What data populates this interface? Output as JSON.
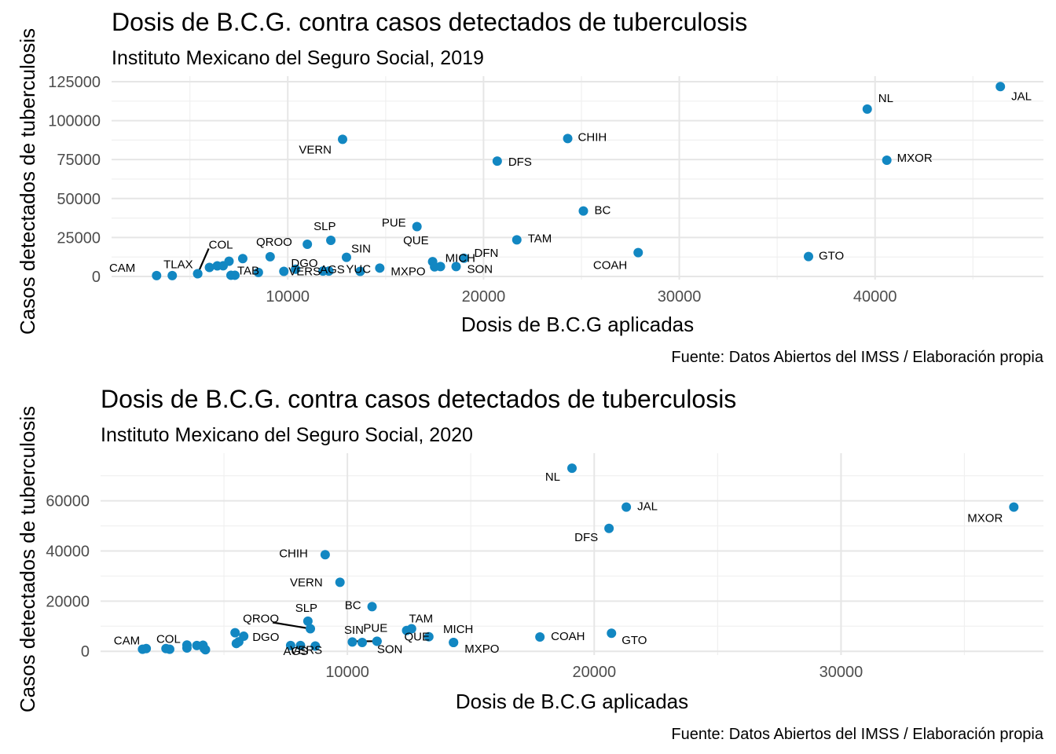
{
  "chart_data": [
    {
      "type": "scatter",
      "title": "Dosis de B.C.G. contra casos detectados de tuberculosis",
      "subtitle": "Instituto Mexicano del Seguro Social, 2019",
      "xlabel": "Dosis de B.C.G aplicadas",
      "ylabel": "Casos detectados de tuberculosis",
      "caption": "Fuente: Datos Abiertos del IMSS / Elaboración propia",
      "xlim": [
        1000,
        48600
      ],
      "ylim": [
        -2000,
        128500
      ],
      "x_ticks": [
        10000,
        20000,
        30000,
        40000
      ],
      "x_tick_labels": [
        "10000",
        "20000",
        "30000",
        "40000"
      ],
      "y_ticks": [
        0,
        25000,
        50000,
        75000,
        100000,
        125000
      ],
      "y_tick_labels": [
        "0",
        "25000",
        "50000",
        "75000",
        "100000",
        "125000"
      ],
      "grid": true,
      "color": "#1287c2",
      "points": [
        {
          "label": "CAM",
          "x": 3300,
          "y": 600
        },
        {
          "label": "",
          "x": 4100,
          "y": 600
        },
        {
          "label": "TLAX",
          "x": 5400,
          "y": 1800
        },
        {
          "label": "",
          "x": 6000,
          "y": 5800
        },
        {
          "label": "",
          "x": 6400,
          "y": 6800
        },
        {
          "label": "",
          "x": 6700,
          "y": 6900
        },
        {
          "label": "",
          "x": 7000,
          "y": 9800
        },
        {
          "label": "",
          "x": 7100,
          "y": 800
        },
        {
          "label": "TAB",
          "x": 7300,
          "y": 800
        },
        {
          "label": "",
          "x": 7700,
          "y": 11500
        },
        {
          "label": "",
          "x": 8500,
          "y": 2600
        },
        {
          "label": "QROO",
          "x": 9100,
          "y": 12700
        },
        {
          "label": "VERS",
          "x": 9800,
          "y": 3300
        },
        {
          "label": "",
          "x": 10400,
          "y": 4700
        },
        {
          "label": "SLP",
          "x": 11000,
          "y": 20700
        },
        {
          "label": "AGS",
          "x": 11800,
          "y": 3500
        },
        {
          "label": "DGO",
          "x": 12100,
          "y": 3500
        },
        {
          "label": "",
          "x": 12200,
          "y": 23200
        },
        {
          "label": "VERN",
          "x": 12800,
          "y": 88000
        },
        {
          "label": "SIN",
          "x": 13000,
          "y": 12300
        },
        {
          "label": "YUC",
          "x": 13700,
          "y": 3300
        },
        {
          "label": "MXPO",
          "x": 14700,
          "y": 5400
        },
        {
          "label": "PUE",
          "x": 16600,
          "y": 32000
        },
        {
          "label": "QUE",
          "x": 17400,
          "y": 9500
        },
        {
          "label": "",
          "x": 17500,
          "y": 6200
        },
        {
          "label": "MICH",
          "x": 17800,
          "y": 6400
        },
        {
          "label": "SON",
          "x": 18600,
          "y": 6400
        },
        {
          "label": "DFN",
          "x": 19000,
          "y": 11700
        },
        {
          "label": "DFS",
          "x": 20700,
          "y": 74000
        },
        {
          "label": "TAM",
          "x": 21700,
          "y": 23500
        },
        {
          "label": "CHIH",
          "x": 24300,
          "y": 88500
        },
        {
          "label": "BC",
          "x": 25100,
          "y": 42000
        },
        {
          "label": "COAH",
          "x": 27900,
          "y": 15300
        },
        {
          "label": "GTO",
          "x": 36600,
          "y": 12800
        },
        {
          "label": "NL",
          "x": 39600,
          "y": 107400
        },
        {
          "label": "MXOR",
          "x": 40600,
          "y": 74600
        },
        {
          "label": "JAL",
          "x": 46400,
          "y": 121800
        },
        {
          "label": "COL",
          "x": 5400,
          "y": 1800
        }
      ]
    },
    {
      "type": "scatter",
      "title": "Dosis de B.C.G. contra casos detectados de tuberculosis",
      "subtitle": "Instituto Mexicano del Seguro Social, 2020",
      "xlabel": "Dosis de B.C.G aplicadas",
      "ylabel": "Casos detectados de tuberculosis",
      "caption": "Fuente: Datos Abiertos del IMSS / Elaboración propia",
      "xlim": [
        0,
        38200
      ],
      "ylim": [
        -1500,
        79000
      ],
      "x_ticks": [
        10000,
        20000,
        30000
      ],
      "x_tick_labels": [
        "10000",
        "20000",
        "30000"
      ],
      "y_ticks": [
        0,
        20000,
        40000,
        60000
      ],
      "y_tick_labels": [
        "0",
        "20000",
        "40000",
        "60000"
      ],
      "grid": true,
      "color": "#1287c2",
      "points": [
        {
          "label": "",
          "x": 1700,
          "y": 800
        },
        {
          "label": "CAM",
          "x": 1850,
          "y": 1100
        },
        {
          "label": "",
          "x": 2650,
          "y": 1100
        },
        {
          "label": "COL",
          "x": 2800,
          "y": 800
        },
        {
          "label": "",
          "x": 3500,
          "y": 2500
        },
        {
          "label": "",
          "x": 3500,
          "y": 1300
        },
        {
          "label": "",
          "x": 3900,
          "y": 2300
        },
        {
          "label": "",
          "x": 4150,
          "y": 2400
        },
        {
          "label": "",
          "x": 4200,
          "y": 1100
        },
        {
          "label": "",
          "x": 4250,
          "y": 600
        },
        {
          "label": "",
          "x": 5450,
          "y": 7400
        },
        {
          "label": "",
          "x": 5500,
          "y": 3100
        },
        {
          "label": "",
          "x": 5600,
          "y": 3800
        },
        {
          "label": "DGO",
          "x": 5800,
          "y": 6000
        },
        {
          "label": "",
          "x": 7700,
          "y": 2300
        },
        {
          "label": "AGS",
          "x": 8100,
          "y": 2300
        },
        {
          "label": "SLP",
          "x": 8400,
          "y": 12000
        },
        {
          "label": "QROO",
          "x": 8500,
          "y": 9000
        },
        {
          "label": "VERS",
          "x": 8700,
          "y": 2100
        },
        {
          "label": "CHIH",
          "x": 9100,
          "y": 38500
        },
        {
          "label": "VERN",
          "x": 9700,
          "y": 27500
        },
        {
          "label": "",
          "x": 10200,
          "y": 3700
        },
        {
          "label": "SIN",
          "x": 10600,
          "y": 3500
        },
        {
          "label": "BC",
          "x": 11000,
          "y": 17800
        },
        {
          "label": "PUE",
          "x": 11200,
          "y": 4000
        },
        {
          "label": "SON",
          "x": 11200,
          "y": 4000
        },
        {
          "label": "QUE",
          "x": 12400,
          "y": 8300
        },
        {
          "label": "TAM",
          "x": 12600,
          "y": 9000
        },
        {
          "label": "",
          "x": 13300,
          "y": 5800
        },
        {
          "label": "MICH",
          "x": 14300,
          "y": 3500
        },
        {
          "label": "MXPO",
          "x": 14300,
          "y": 3500
        },
        {
          "label": "COAH",
          "x": 17800,
          "y": 5700
        },
        {
          "label": "NL",
          "x": 19100,
          "y": 73000
        },
        {
          "label": "DFS",
          "x": 20600,
          "y": 49000
        },
        {
          "label": "GTO",
          "x": 20700,
          "y": 7200
        },
        {
          "label": "JAL",
          "x": 21300,
          "y": 57500
        },
        {
          "label": "MXOR",
          "x": 37000,
          "y": 57500
        }
      ]
    }
  ]
}
